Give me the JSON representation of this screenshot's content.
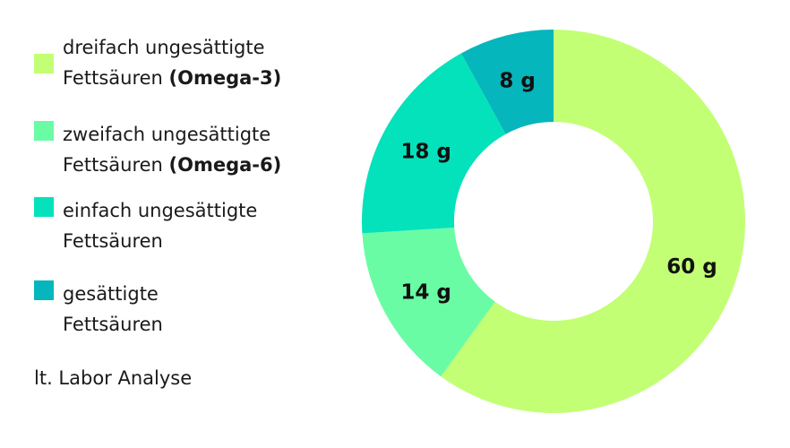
{
  "chart_data": {
    "type": "pie",
    "variant": "donut",
    "title": "",
    "slices": [
      {
        "label_line1": "dreifach ungesättigte",
        "label_line2_prefix": "Fettsäuren ",
        "label_line2_bold": "(Omega-3)",
        "value": 60,
        "unit": "g",
        "value_text": "60 g",
        "color": "#c2ff74"
      },
      {
        "label_line1": "zweifach ungesättigte",
        "label_line2_prefix": "Fettsäuren ",
        "label_line2_bold": "(Omega-6)",
        "value": 14,
        "unit": "g",
        "value_text": "14 g",
        "color": "#69fca5"
      },
      {
        "label_line1": "einfach ungesättigte",
        "label_line2_prefix": "Fettsäuren",
        "label_line2_bold": "",
        "value": 18,
        "unit": "g",
        "value_text": "18 g",
        "color": "#04e2bc"
      },
      {
        "label_line1": "gesättigte",
        "label_line2_prefix": "Fettsäuren",
        "label_line2_bold": "",
        "value": 8,
        "unit": "g",
        "value_text": "8 g",
        "color": "#05b6bc"
      }
    ],
    "legend_position": "left",
    "note": "lt. Labor Analyse"
  }
}
